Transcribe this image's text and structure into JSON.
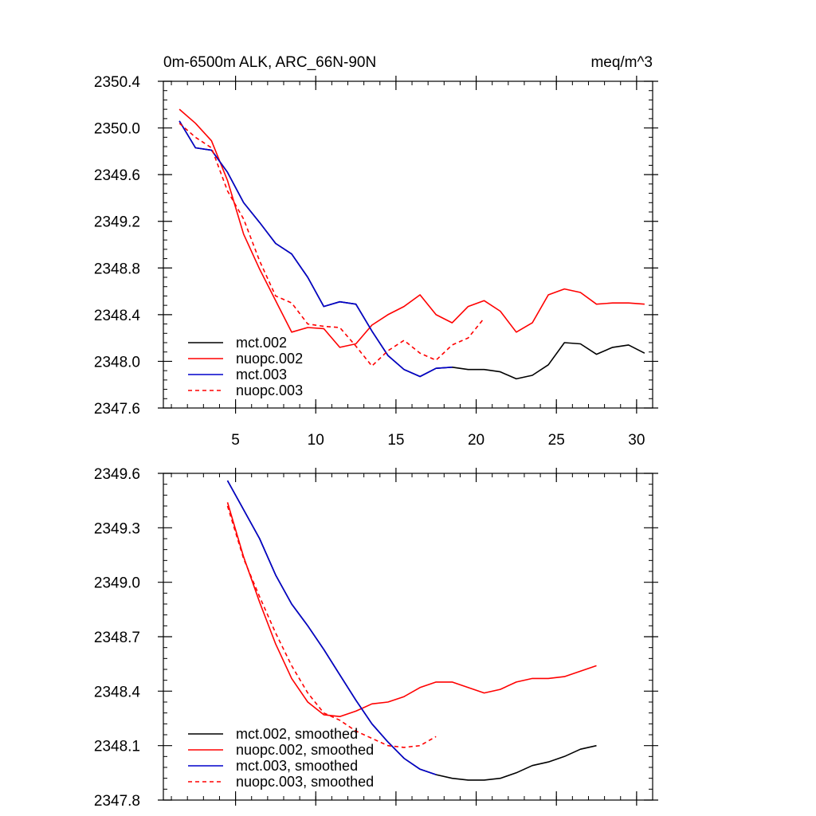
{
  "colors": {
    "mct_002": "#000000",
    "nuopc_002": "#ff0000",
    "mct_003": "#0000cc",
    "nuopc_003": "#ff0000"
  },
  "chart_data": [
    {
      "type": "line",
      "title": "0m-6500m ALK, ARC_66N-90N",
      "units": "meq/m^3",
      "xlabel": "",
      "ylabel": "",
      "xlim": [
        0.5,
        31
      ],
      "ylim": [
        2347.6,
        2350.4
      ],
      "xticks": [
        5,
        10,
        15,
        20,
        25,
        30
      ],
      "yticks": [
        2347.6,
        2348.0,
        2348.4,
        2348.8,
        2349.2,
        2349.6,
        2350.0,
        2350.4
      ],
      "ytick_labels": [
        "2347.6",
        "2348.0",
        "2348.4",
        "2348.8",
        "2349.2",
        "2349.6",
        "2350.0",
        "2350.4"
      ],
      "grid": false,
      "legend_position": "bottom-left",
      "series": [
        {
          "name": "mct.002",
          "color": "#000000",
          "dash": "solid",
          "x": [
            1.5,
            2.5,
            3.5,
            4.5,
            5.5,
            6.5,
            7.5,
            8.5,
            9.5,
            10.5,
            11.5,
            12.5,
            13.5,
            14.5,
            15.5,
            16.5,
            17.5,
            18.5,
            19.5,
            20.5,
            21.5,
            22.5,
            23.5,
            24.5,
            25.5,
            26.5,
            27.5,
            28.5,
            29.5,
            30.5
          ],
          "y": [
            2350.06,
            2349.83,
            2349.81,
            2349.62,
            2349.36,
            2349.19,
            2349.01,
            2348.92,
            2348.72,
            2348.47,
            2348.51,
            2348.49,
            2348.26,
            2348.05,
            2347.93,
            2347.87,
            2347.94,
            2347.95,
            2347.93,
            2347.93,
            2347.91,
            2347.85,
            2347.88,
            2347.97,
            2348.16,
            2348.15,
            2348.06,
            2348.12,
            2348.14,
            2348.07
          ]
        },
        {
          "name": "nuopc.002",
          "color": "#ff0000",
          "dash": "solid",
          "x": [
            1.5,
            2.5,
            3.5,
            4.5,
            5.5,
            6.5,
            7.5,
            8.5,
            9.5,
            10.5,
            11.5,
            12.5,
            13.5,
            14.5,
            15.5,
            16.5,
            17.5,
            18.5,
            19.5,
            20.5,
            21.5,
            22.5,
            23.5,
            24.5,
            25.5,
            26.5,
            27.5,
            28.5,
            29.5,
            30.5
          ],
          "y": [
            2350.16,
            2350.04,
            2349.89,
            2349.55,
            2349.09,
            2348.79,
            2348.52,
            2348.25,
            2348.29,
            2348.28,
            2348.12,
            2348.15,
            2348.31,
            2348.4,
            2348.47,
            2348.57,
            2348.4,
            2348.33,
            2348.47,
            2348.52,
            2348.43,
            2348.25,
            2348.33,
            2348.57,
            2348.62,
            2348.59,
            2348.49,
            2348.5,
            2348.5,
            2348.49
          ]
        },
        {
          "name": "mct.003",
          "color": "#0000cc",
          "dash": "solid",
          "x": [
            1.5,
            2.5,
            3.5,
            4.5,
            5.5,
            6.5,
            7.5,
            8.5,
            9.5,
            10.5,
            11.5,
            12.5,
            13.5,
            14.5,
            15.5,
            16.5,
            17.5,
            18.5
          ],
          "y": [
            2350.06,
            2349.83,
            2349.81,
            2349.62,
            2349.36,
            2349.19,
            2349.01,
            2348.92,
            2348.72,
            2348.47,
            2348.51,
            2348.49,
            2348.26,
            2348.05,
            2347.93,
            2347.87,
            2347.94,
            2347.95
          ]
        },
        {
          "name": "nuopc.003",
          "color": "#ff0000",
          "dash": "dashed",
          "x": [
            1.5,
            2.5,
            3.5,
            4.5,
            5.5,
            6.5,
            7.5,
            8.5,
            9.5,
            10.5,
            11.5,
            12.5,
            13.5,
            14.5,
            15.5,
            16.5,
            17.5,
            18.5,
            19.5,
            20.5
          ],
          "y": [
            2350.04,
            2349.92,
            2349.83,
            2349.46,
            2349.22,
            2348.86,
            2348.56,
            2348.5,
            2348.32,
            2348.3,
            2348.29,
            2348.13,
            2347.96,
            2348.09,
            2348.18,
            2348.07,
            2348.01,
            2348.14,
            2348.2,
            2348.37
          ]
        }
      ]
    },
    {
      "type": "line",
      "title": "",
      "xlabel": "",
      "ylabel": "",
      "xlim": [
        0.5,
        31
      ],
      "ylim": [
        2347.8,
        2349.6
      ],
      "xticks": [
        5,
        10,
        15,
        20,
        25,
        30
      ],
      "yticks": [
        2347.8,
        2348.1,
        2348.4,
        2348.7,
        2349.0,
        2349.3,
        2349.6
      ],
      "ytick_labels": [
        "2347.8",
        "2348.1",
        "2348.4",
        "2348.7",
        "2349.0",
        "2349.3",
        "2349.6"
      ],
      "grid": false,
      "legend_position": "bottom-left",
      "series": [
        {
          "name": "mct.002, smoothed",
          "color": "#000000",
          "dash": "solid",
          "x": [
            4.5,
            5.5,
            6.5,
            7.5,
            8.5,
            9.5,
            10.5,
            11.5,
            12.5,
            13.5,
            14.5,
            15.5,
            16.5,
            17.5,
            18.5,
            19.5,
            20.5,
            21.5,
            22.5,
            23.5,
            24.5,
            25.5,
            26.5,
            27.5
          ],
          "y": [
            2349.56,
            2349.4,
            2349.24,
            2349.04,
            2348.88,
            2348.76,
            2348.63,
            2348.49,
            2348.35,
            2348.22,
            2348.12,
            2348.03,
            2347.97,
            2347.94,
            2347.92,
            2347.91,
            2347.91,
            2347.92,
            2347.95,
            2347.99,
            2348.01,
            2348.04,
            2348.08,
            2348.1
          ]
        },
        {
          "name": "nuopc.002, smoothed",
          "color": "#ff0000",
          "dash": "solid",
          "x": [
            4.5,
            5.5,
            6.5,
            7.5,
            8.5,
            9.5,
            10.5,
            11.5,
            12.5,
            13.5,
            14.5,
            15.5,
            16.5,
            17.5,
            18.5,
            19.5,
            20.5,
            21.5,
            22.5,
            23.5,
            24.5,
            25.5,
            26.5,
            27.5
          ],
          "y": [
            2349.44,
            2349.14,
            2348.89,
            2348.66,
            2348.47,
            2348.34,
            2348.27,
            2348.26,
            2348.29,
            2348.33,
            2348.34,
            2348.37,
            2348.42,
            2348.45,
            2348.45,
            2348.42,
            2348.39,
            2348.41,
            2348.45,
            2348.47,
            2348.47,
            2348.48,
            2348.51,
            2348.54
          ]
        },
        {
          "name": "mct.003, smoothed",
          "color": "#0000cc",
          "dash": "solid",
          "x": [
            4.5,
            5.5,
            6.5,
            7.5,
            8.5,
            9.5,
            10.5,
            11.5,
            12.5,
            13.5,
            14.5,
            15.5,
            16.5,
            17.5
          ],
          "y": [
            2349.56,
            2349.4,
            2349.24,
            2349.04,
            2348.88,
            2348.76,
            2348.63,
            2348.49,
            2348.35,
            2348.22,
            2348.12,
            2348.03,
            2347.97,
            2347.94
          ]
        },
        {
          "name": "nuopc.003, smoothed",
          "color": "#ff0000",
          "dash": "dashed",
          "x": [
            4.5,
            5.5,
            6.5,
            7.5,
            8.5,
            9.5,
            10.5,
            11.5,
            12.5,
            13.5,
            14.5,
            15.5,
            16.5,
            17.5
          ],
          "y": [
            2349.42,
            2349.13,
            2348.92,
            2348.72,
            2348.54,
            2348.39,
            2348.28,
            2348.24,
            2348.18,
            2348.14,
            2348.1,
            2348.09,
            2348.1,
            2348.15
          ]
        }
      ]
    }
  ]
}
